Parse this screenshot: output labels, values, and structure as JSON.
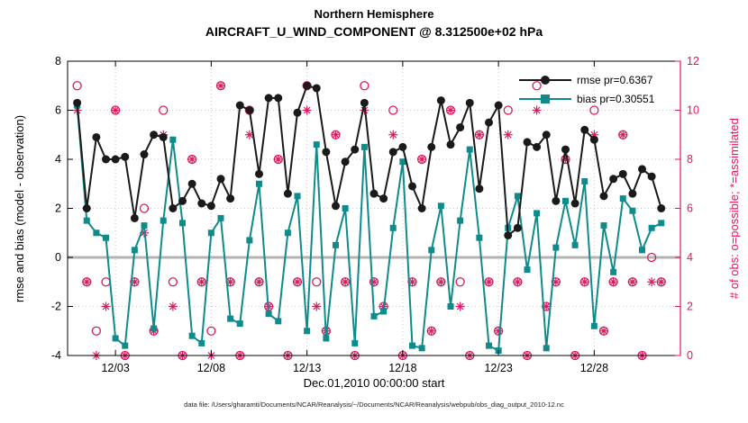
{
  "caption": "data file: /Users/gharamti/Documents/NCAR/Reanalysis/~/Documents/NCAR/Reanalysis/webpub/obs_diag_output_2010-12.nc",
  "colors": {
    "rmse": "#1a1a1a",
    "bias": "#0f8b8b",
    "obs": "#d81b60",
    "zero_line": "#b3b3b3",
    "grid": "#c9c9c9",
    "axis": "#000000"
  },
  "chart_data": {
    "type": "line",
    "title": "Northern Hemisphere",
    "subtitle": "AIRCRAFT_U_WIND_COMPONENT @ 8.312500e+02 hPa",
    "xlabel": "Dec.01,2010 00:00:00 start",
    "ylabel_left": "rmse and bias (model - observation)",
    "ylabel_right": "# of obs: o=possible; *=assimilated",
    "x_range_days": [
      0.5,
      32.5
    ],
    "ylim_left": [
      -4,
      8
    ],
    "ylim_right": [
      0,
      12
    ],
    "left_tick_values": [
      8,
      6,
      4,
      2,
      0,
      -2,
      -4
    ],
    "right_tick_values": [
      12,
      10,
      8,
      6,
      4,
      2,
      0
    ],
    "x_tick_days": [
      3,
      8,
      13,
      18,
      23,
      28
    ],
    "x_tick_labels": [
      "12/03",
      "12/08",
      "12/13",
      "12/18",
      "12/23",
      "12/28"
    ],
    "grid": true,
    "legend_position": "top-right-inside",
    "zero_line": {
      "axis": "left",
      "value": 0
    },
    "x_days": [
      1,
      1.5,
      2,
      2.5,
      3,
      3.5,
      4,
      4.5,
      5,
      5.5,
      6,
      6.5,
      7,
      7.5,
      8,
      8.5,
      9,
      9.5,
      10,
      10.5,
      11,
      11.5,
      12,
      12.5,
      13,
      13.5,
      14,
      14.5,
      15,
      15.5,
      16,
      16.5,
      17,
      17.5,
      18,
      18.5,
      19,
      19.5,
      20,
      20.5,
      21,
      21.5,
      22,
      22.5,
      23,
      23.5,
      24,
      24.5,
      25,
      25.5,
      26,
      26.5,
      27,
      27.5,
      28,
      28.5,
      29,
      29.5,
      30,
      30.5,
      31,
      31.5
    ],
    "series": [
      {
        "name": "rmse",
        "axis": "left",
        "marker": "filled-circle",
        "color": "#1a1a1a",
        "legend": "rmse pr=0.6367",
        "values": [
          6.3,
          2.0,
          4.9,
          4.0,
          4.0,
          4.1,
          1.6,
          4.2,
          5.0,
          4.9,
          2.0,
          2.3,
          3.0,
          2.2,
          2.1,
          3.2,
          2.4,
          6.2,
          6.0,
          3.4,
          6.5,
          6.5,
          2.6,
          5.9,
          7.0,
          6.9,
          4.3,
          2.1,
          3.9,
          4.4,
          6.3,
          2.6,
          2.4,
          4.3,
          4.5,
          2.9,
          2.0,
          4.5,
          6.4,
          4.6,
          5.3,
          6.3,
          2.8,
          5.5,
          6.2,
          0.9,
          1.2,
          4.7,
          4.5,
          5.0,
          2.3,
          4.4,
          2.2,
          5.2,
          4.8,
          2.5,
          3.2,
          3.4,
          2.6,
          3.6,
          3.3,
          2.0
        ]
      },
      {
        "name": "bias",
        "axis": "left",
        "marker": "filled-square",
        "color": "#0f8b8b",
        "legend": "bias pr=0.30551",
        "values": [
          6.2,
          1.5,
          1.0,
          0.8,
          -3.3,
          -3.6,
          0.3,
          1.3,
          -2.9,
          1.5,
          4.8,
          1.4,
          -3.2,
          -3.5,
          1.0,
          1.6,
          -2.5,
          -2.7,
          0.7,
          3.0,
          -2.3,
          -2.6,
          1.0,
          2.5,
          -3.0,
          4.6,
          -3.3,
          0.5,
          2.0,
          -3.5,
          4.5,
          -2.4,
          -2.2,
          1.2,
          3.9,
          -3.6,
          -3.7,
          0.3,
          2.1,
          -2.0,
          1.5,
          4.4,
          0.8,
          -3.6,
          -3.8,
          1.2,
          2.5,
          -0.5,
          1.8,
          -3.7,
          0.4,
          2.3,
          0.5,
          3.1,
          -2.8,
          1.3,
          -0.6,
          2.4,
          1.9,
          0.3,
          1.2,
          1.4
        ]
      },
      {
        "name": "possible-obs",
        "axis": "right",
        "marker": "open-circle",
        "color": "#d81b60",
        "line": false,
        "values": [
          11,
          3,
          1,
          3,
          10,
          0,
          3,
          6,
          1,
          10,
          3,
          0,
          8,
          3,
          1,
          11,
          3,
          0,
          10,
          3,
          2,
          8,
          0,
          3,
          11,
          3,
          1,
          9,
          3,
          0,
          11,
          3,
          2,
          10,
          0,
          3,
          8,
          1,
          3,
          10,
          3,
          0,
          9,
          3,
          1,
          10,
          3,
          0,
          11,
          2,
          3,
          8,
          0,
          3,
          10,
          1,
          3,
          9,
          3,
          0,
          4,
          3
        ]
      },
      {
        "name": "assimilated-obs",
        "axis": "right",
        "marker": "asterisk",
        "color": "#d81b60",
        "line": false,
        "values": [
          10,
          3,
          0,
          2,
          10,
          0,
          3,
          5,
          1,
          9,
          2,
          0,
          8,
          3,
          0,
          11,
          3,
          0,
          9,
          3,
          2,
          8,
          0,
          3,
          10,
          2,
          1,
          9,
          3,
          0,
          10,
          3,
          2,
          9,
          0,
          3,
          8,
          1,
          3,
          10,
          2,
          0,
          9,
          3,
          1,
          9,
          3,
          0,
          10,
          2,
          3,
          8,
          0,
          3,
          9,
          1,
          3,
          9,
          3,
          0,
          3,
          3
        ]
      }
    ]
  }
}
